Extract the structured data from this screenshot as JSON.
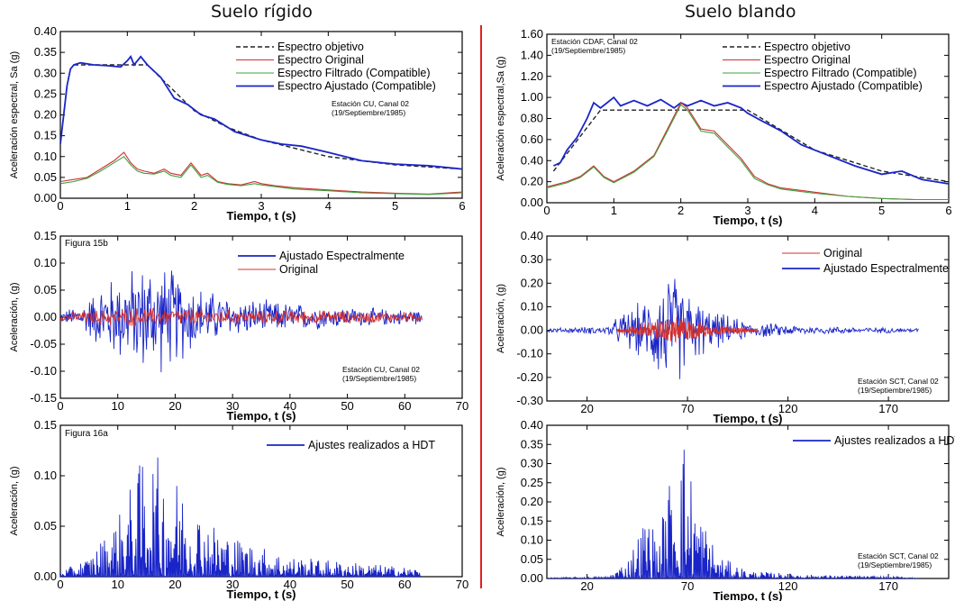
{
  "titles": {
    "left": "Suelo rígido",
    "right": "Suelo blando"
  },
  "colors": {
    "target": "#222222",
    "original": "#d03030",
    "filtered": "#3fa03f",
    "adjusted": "#1a25c8",
    "divider": "#e02020"
  },
  "chart_data": [
    {
      "type": "line",
      "id": "spectrum-rigid",
      "xlabel": "Tiempo, t (s)",
      "ylabel": "Aceleración espectral, Sa (g)",
      "xlim": [
        0,
        6
      ],
      "ylim": [
        0,
        0.4
      ],
      "xticks": [
        "0",
        "1",
        "2",
        "3",
        "4",
        "5",
        "6"
      ],
      "yticks": [
        "0.00",
        "0.05",
        "0.10",
        "0.15",
        "0.20",
        "0.25",
        "0.30",
        "0.35",
        "0.40"
      ],
      "legend": [
        "Espectro objetivo",
        "Espectro Original",
        "Espectro Filtrado (Compatible)",
        "Espectro Ajustado (Compatible)"
      ],
      "annotation": [
        "Estación CU, Canal 02",
        "(19/Septiembre/1985)"
      ],
      "series": [
        {
          "name": "Espectro objetivo",
          "style": "dashed",
          "x": [
            0.2,
            1.3,
            2,
            2.5,
            3,
            4,
            5,
            6
          ],
          "y": [
            0.32,
            0.32,
            0.21,
            0.17,
            0.14,
            0.1,
            0.08,
            0.07
          ]
        },
        {
          "name": "Espectro Ajustado (Compatible)",
          "style": "adjusted",
          "x": [
            0,
            0.05,
            0.1,
            0.15,
            0.2,
            0.3,
            0.5,
            0.7,
            0.9,
            1.0,
            1.05,
            1.1,
            1.15,
            1.2,
            1.3,
            1.5,
            1.7,
            1.9,
            2.1,
            2.3,
            2.6,
            2.8,
            3.0,
            3.3,
            3.6,
            4.0,
            4.5,
            5.0,
            5.5,
            6.0
          ],
          "y": [
            0.13,
            0.2,
            0.27,
            0.31,
            0.32,
            0.325,
            0.32,
            0.318,
            0.315,
            0.33,
            0.34,
            0.32,
            0.33,
            0.34,
            0.32,
            0.29,
            0.24,
            0.225,
            0.2,
            0.19,
            0.16,
            0.15,
            0.14,
            0.13,
            0.125,
            0.11,
            0.09,
            0.082,
            0.078,
            0.07
          ]
        },
        {
          "name": "Espectro Original",
          "style": "original",
          "x": [
            0,
            0.2,
            0.4,
            0.6,
            0.8,
            0.95,
            1.05,
            1.15,
            1.25,
            1.4,
            1.55,
            1.65,
            1.8,
            1.95,
            2.1,
            2.2,
            2.35,
            2.5,
            2.7,
            2.9,
            3.0,
            3.2,
            3.5,
            4.0,
            4.5,
            5.0,
            5.5,
            6.0
          ],
          "y": [
            0.04,
            0.045,
            0.05,
            0.07,
            0.09,
            0.11,
            0.085,
            0.07,
            0.065,
            0.06,
            0.07,
            0.06,
            0.055,
            0.085,
            0.055,
            0.06,
            0.04,
            0.035,
            0.032,
            0.04,
            0.035,
            0.03,
            0.025,
            0.02,
            0.015,
            0.012,
            0.01,
            0.015
          ]
        },
        {
          "name": "Espectro Filtrado (Compatible)",
          "style": "filtered",
          "x": [
            0,
            0.2,
            0.4,
            0.6,
            0.8,
            0.95,
            1.05,
            1.15,
            1.25,
            1.4,
            1.55,
            1.65,
            1.8,
            1.95,
            2.1,
            2.2,
            2.35,
            2.5,
            2.7,
            2.9,
            3.0,
            3.2,
            3.5,
            4.0,
            4.5,
            5.0,
            5.5,
            6.0
          ],
          "y": [
            0.035,
            0.04,
            0.048,
            0.065,
            0.085,
            0.1,
            0.08,
            0.065,
            0.06,
            0.058,
            0.065,
            0.055,
            0.05,
            0.08,
            0.05,
            0.055,
            0.038,
            0.033,
            0.03,
            0.035,
            0.032,
            0.028,
            0.022,
            0.018,
            0.013,
            0.011,
            0.009,
            0.013
          ]
        }
      ]
    },
    {
      "type": "line",
      "id": "spectrum-soft",
      "xlabel": "Tiempo, t (s)",
      "ylabel": "Aceleración espectral,Sa (g)",
      "xlim": [
        0,
        6
      ],
      "ylim": [
        0,
        1.6
      ],
      "xticks": [
        "0",
        "1",
        "2",
        "3",
        "4",
        "5",
        "6"
      ],
      "yticks": [
        "0.00",
        "0.20",
        "0.40",
        "0.60",
        "0.80",
        "1.00",
        "1.20",
        "1.40",
        "1.60"
      ],
      "legend": [
        "Espectro objetivo",
        "Espectro Original",
        "Espectro Filtrado (Compatible)",
        "Espectro Ajustado (Compatible)"
      ],
      "annotation": [
        "Estación CDAF, Canal 02",
        "(19/Septiembre/1985)"
      ],
      "series": [
        {
          "name": "Espectro objetivo",
          "style": "dashed",
          "x": [
            0.1,
            0.8,
            3.0,
            4.0,
            5.0,
            6.0
          ],
          "y": [
            0.3,
            0.88,
            0.88,
            0.5,
            0.3,
            0.2
          ]
        },
        {
          "name": "Espectro Ajustado (Compatible)",
          "style": "adjusted",
          "x": [
            0.1,
            0.2,
            0.3,
            0.45,
            0.6,
            0.7,
            0.8,
            0.9,
            1.0,
            1.1,
            1.3,
            1.5,
            1.7,
            1.9,
            2.0,
            2.1,
            2.3,
            2.5,
            2.7,
            2.9,
            3.0,
            3.2,
            3.5,
            3.8,
            4.2,
            4.6,
            5.0,
            5.3,
            5.6,
            6.0
          ],
          "y": [
            0.35,
            0.38,
            0.5,
            0.62,
            0.8,
            0.95,
            0.9,
            0.95,
            1.0,
            0.92,
            0.97,
            0.92,
            0.98,
            0.9,
            0.95,
            0.92,
            0.97,
            0.92,
            0.95,
            0.9,
            0.85,
            0.78,
            0.68,
            0.55,
            0.45,
            0.35,
            0.27,
            0.3,
            0.22,
            0.18
          ]
        },
        {
          "name": "Espectro Original",
          "style": "original",
          "x": [
            0,
            0.3,
            0.5,
            0.7,
            0.85,
            1.0,
            1.3,
            1.6,
            1.8,
            2.0,
            2.1,
            2.3,
            2.5,
            2.7,
            2.9,
            3.1,
            3.3,
            3.5,
            4.0,
            4.5,
            5.0,
            5.5,
            6.0
          ],
          "y": [
            0.15,
            0.2,
            0.25,
            0.35,
            0.25,
            0.2,
            0.3,
            0.45,
            0.7,
            0.95,
            0.9,
            0.7,
            0.68,
            0.55,
            0.42,
            0.25,
            0.18,
            0.14,
            0.1,
            0.06,
            0.04,
            0.03,
            0.03
          ]
        },
        {
          "name": "Espectro Filtrado (Compatible)",
          "style": "filtered",
          "x": [
            0,
            0.3,
            0.5,
            0.7,
            0.85,
            1.0,
            1.3,
            1.6,
            1.8,
            2.0,
            2.1,
            2.3,
            2.5,
            2.7,
            2.9,
            3.1,
            3.3,
            3.5,
            4.0,
            4.5,
            5.0,
            5.5,
            6.0
          ],
          "y": [
            0.14,
            0.19,
            0.24,
            0.34,
            0.24,
            0.19,
            0.29,
            0.44,
            0.68,
            0.93,
            0.88,
            0.68,
            0.66,
            0.53,
            0.4,
            0.23,
            0.17,
            0.13,
            0.09,
            0.06,
            0.04,
            0.03,
            0.03
          ]
        }
      ]
    },
    {
      "type": "line",
      "id": "accel-rigid",
      "xlabel": "Tiempo, t (s)",
      "ylabel": "Aceleración, (g)",
      "xlim": [
        0,
        70
      ],
      "ylim": [
        -0.15,
        0.15
      ],
      "xticks": [
        "0",
        "10",
        "20",
        "30",
        "40",
        "50",
        "60",
        "70"
      ],
      "yticks": [
        "-0.15",
        "-0.10",
        "-0.05",
        "0.00",
        "0.05",
        "0.10",
        "0.15"
      ],
      "figure_label": "Figura 15b",
      "legend": [
        "Ajustado Espectralmente",
        "Original"
      ],
      "annotation": [
        "Estación CU, Canal 02",
        "(19/Septiembre/1985)"
      ],
      "series": [
        {
          "name": "Ajustado Espectralmente",
          "style": "adjusted",
          "signal": "noise",
          "x_range": [
            0,
            63
          ],
          "envelope": [
            [
              0,
              0.01
            ],
            [
              4,
              0.03
            ],
            [
              8,
              0.08
            ],
            [
              12,
              0.1
            ],
            [
              16,
              0.12
            ],
            [
              20,
              0.1
            ],
            [
              25,
              0.06
            ],
            [
              30,
              0.04
            ],
            [
              40,
              0.03
            ],
            [
              50,
              0.02
            ],
            [
              63,
              0.015
            ]
          ]
        },
        {
          "name": "Original",
          "style": "original",
          "signal": "noise",
          "x_range": [
            0,
            63
          ],
          "envelope": [
            [
              0,
              0.008
            ],
            [
              10,
              0.02
            ],
            [
              20,
              0.02
            ],
            [
              30,
              0.015
            ],
            [
              45,
              0.015
            ],
            [
              63,
              0.01
            ]
          ]
        }
      ]
    },
    {
      "type": "line",
      "id": "accel-soft",
      "xlabel": "Tiempo, t (s)",
      "ylabel": "Aceleración, (g)",
      "xlim": [
        0,
        200
      ],
      "ylim": [
        -0.3,
        0.4
      ],
      "xticks": [
        "20",
        "70",
        "120",
        "170"
      ],
      "xtick_values": [
        20,
        70,
        120,
        170
      ],
      "yticks": [
        "-0.30",
        "-0.20",
        "-0.10",
        "0.00",
        "0.10",
        "0.20",
        "0.30",
        "0.40"
      ],
      "legend": [
        "Original",
        "Ajustado Espectralmente"
      ],
      "annotation": [
        "Estación SCT, Canal 02",
        "(19/Septiembre/1985)"
      ],
      "series": [
        {
          "name": "Ajustado Espectralmente",
          "style": "adjusted",
          "signal": "noise",
          "x_range": [
            0,
            185
          ],
          "envelope": [
            [
              0,
              0.01
            ],
            [
              30,
              0.02
            ],
            [
              40,
              0.1
            ],
            [
              50,
              0.15
            ],
            [
              60,
              0.3
            ],
            [
              70,
              0.2
            ],
            [
              80,
              0.1
            ],
            [
              100,
              0.04
            ],
            [
              130,
              0.02
            ],
            [
              185,
              0.01
            ]
          ]
        },
        {
          "name": "Original",
          "style": "original",
          "signal": "noise",
          "x_range": [
            35,
            105
          ],
          "envelope": [
            [
              35,
              0.01
            ],
            [
              55,
              0.05
            ],
            [
              65,
              0.07
            ],
            [
              80,
              0.03
            ],
            [
              105,
              0.01
            ]
          ]
        }
      ]
    },
    {
      "type": "line",
      "id": "hdt-rigid",
      "xlabel": "Tiempo, t (s)",
      "ylabel": "Aceleración, (g)",
      "xlim": [
        0,
        70
      ],
      "ylim": [
        0,
        0.15
      ],
      "xticks": [
        "0",
        "10",
        "20",
        "30",
        "40",
        "50",
        "60",
        "70"
      ],
      "yticks": [
        "0.00",
        "0.05",
        "0.10",
        "0.15"
      ],
      "figure_label": "Figura 16a",
      "legend": [
        "Ajustes realizados a HDT"
      ],
      "series": [
        {
          "name": "Ajustes realizados a HDT",
          "style": "adjusted",
          "signal": "spikes",
          "x_range": [
            0,
            63
          ],
          "envelope": [
            [
              0,
              0.005
            ],
            [
              5,
              0.02
            ],
            [
              10,
              0.06
            ],
            [
              15,
              0.13
            ],
            [
              20,
              0.1
            ],
            [
              25,
              0.06
            ],
            [
              30,
              0.04
            ],
            [
              40,
              0.02
            ],
            [
              50,
              0.015
            ],
            [
              63,
              0.008
            ]
          ]
        }
      ]
    },
    {
      "type": "line",
      "id": "hdt-soft",
      "xlabel": "Tiempo, t (s)",
      "ylabel": "Aceleración, (g)",
      "xlim": [
        0,
        200
      ],
      "ylim": [
        0,
        0.4
      ],
      "xticks": [
        "20",
        "70",
        "120",
        "170"
      ],
      "xtick_values": [
        20,
        70,
        120,
        170
      ],
      "yticks": [
        "0.00",
        "0.05",
        "0.10",
        "0.15",
        "0.20",
        "0.25",
        "0.30",
        "0.35",
        "0.40"
      ],
      "legend": [
        "Ajustes realizados a HDT"
      ],
      "annotation": [
        "Estación SCT, Canal 02",
        "(19/Septiembre/1985)"
      ],
      "series": [
        {
          "name": "Ajustes realizados a HDT",
          "style": "adjusted",
          "signal": "spikes",
          "x_range": [
            0,
            185
          ],
          "envelope": [
            [
              0,
              0.002
            ],
            [
              30,
              0.005
            ],
            [
              40,
              0.05
            ],
            [
              50,
              0.18
            ],
            [
              55,
              0.1
            ],
            [
              62,
              0.3
            ],
            [
              68,
              0.38
            ],
            [
              75,
              0.2
            ],
            [
              85,
              0.06
            ],
            [
              100,
              0.02
            ],
            [
              130,
              0.01
            ],
            [
              185,
              0.003
            ]
          ]
        }
      ]
    }
  ]
}
